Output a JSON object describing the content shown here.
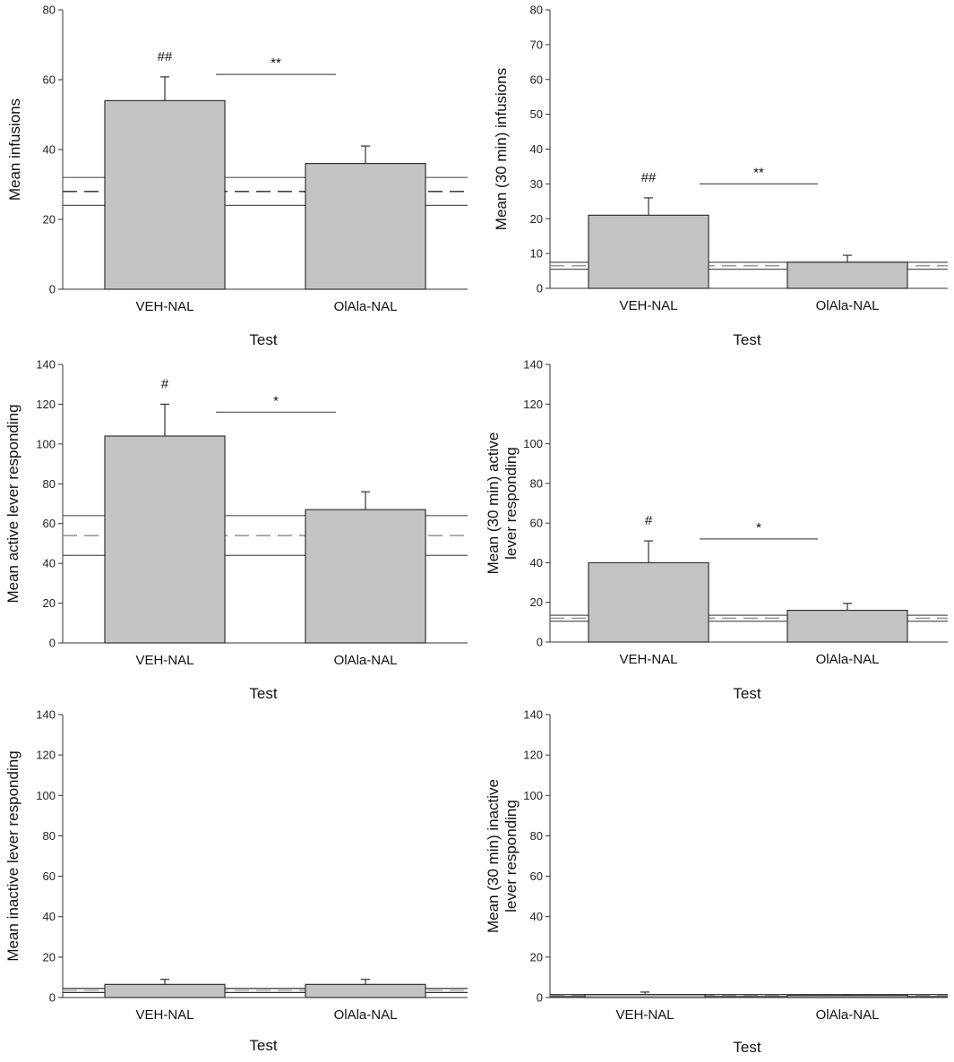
{
  "figure": {
    "panel_count": 6
  },
  "chart_data": [
    {
      "type": "bar",
      "ylabel": "Mean infusions",
      "xlabel": "Test",
      "ylim": [
        0,
        80
      ],
      "yticks": [
        0,
        20,
        40,
        60,
        80
      ],
      "categories": [
        "VEH-NAL",
        "OlAla-NAL"
      ],
      "values": [
        54,
        36
      ],
      "errors": [
        6.8,
        5
      ],
      "bar_marks": [
        "##",
        ""
      ],
      "comparison": {
        "label": "**",
        "level": 61.5
      },
      "baseline": {
        "mean": 28,
        "upper": 32,
        "lower": 24,
        "mean_color": "#444444",
        "band_color": "#555555"
      }
    },
    {
      "type": "bar",
      "ylabel": "Mean (30 min) infusions",
      "xlabel": "Test",
      "ylim": [
        0,
        80
      ],
      "yticks": [
        0,
        10,
        20,
        30,
        40,
        50,
        60,
        70,
        80
      ],
      "categories": [
        "VEH-NAL",
        "OlAla-NAL"
      ],
      "values": [
        21,
        7.5
      ],
      "errors": [
        5,
        2
      ],
      "bar_marks": [
        "##",
        ""
      ],
      "comparison": {
        "label": "**",
        "level": 30
      },
      "baseline": {
        "mean": 6.5,
        "upper": 7.5,
        "lower": 5.5,
        "mean_color": "#999999",
        "band_color": "#555555"
      }
    },
    {
      "type": "bar",
      "ylabel": "Mean active lever responding",
      "xlabel": "Test",
      "ylim": [
        0,
        140
      ],
      "yticks": [
        0,
        20,
        40,
        60,
        80,
        100,
        120,
        140
      ],
      "categories": [
        "VEH-NAL",
        "OlAla-NAL"
      ],
      "values": [
        104,
        67
      ],
      "errors": [
        16,
        9
      ],
      "bar_marks": [
        "#",
        ""
      ],
      "comparison": {
        "label": "*",
        "level": 116
      },
      "baseline": {
        "mean": 54,
        "upper": 64,
        "lower": 44,
        "mean_color": "#999999",
        "band_color": "#555555"
      }
    },
    {
      "type": "bar",
      "ylabel": "Mean (30 min) active lever responding",
      "ylabel_lines": [
        "Mean (30 min) active",
        "lever responding"
      ],
      "xlabel": "Test",
      "ylim": [
        0,
        140
      ],
      "yticks": [
        0,
        20,
        40,
        60,
        80,
        100,
        120,
        140
      ],
      "categories": [
        "VEH-NAL",
        "OlAla-NAL"
      ],
      "values": [
        40,
        16
      ],
      "errors": [
        11,
        3.5
      ],
      "bar_marks": [
        "#",
        ""
      ],
      "comparison": {
        "label": "*",
        "level": 52
      },
      "baseline": {
        "mean": 12,
        "upper": 13.5,
        "lower": 10.5,
        "mean_color": "#999999",
        "band_color": "#555555"
      }
    },
    {
      "type": "bar",
      "ylabel": "Mean inactive lever responding",
      "xlabel": "Test",
      "ylim": [
        0,
        140
      ],
      "yticks": [
        0,
        20,
        40,
        60,
        80,
        100,
        120,
        140
      ],
      "categories": [
        "VEH-NAL",
        "OlAla-NAL"
      ],
      "values": [
        6.5,
        6.5
      ],
      "errors": [
        2.5,
        2.5
      ],
      "bar_marks": [
        "",
        ""
      ],
      "comparison": null,
      "baseline": {
        "mean": 3.5,
        "upper": 4.5,
        "lower": 2.5,
        "mean_color": "#bbbbbb",
        "band_color": "#333333"
      }
    },
    {
      "type": "bar",
      "ylabel": "Mean (30 min) inactive lever responding",
      "ylabel_lines": [
        "Mean (30 min) inactive",
        "lever responding"
      ],
      "xlabel": "Test",
      "ylim": [
        0,
        140
      ],
      "yticks": [
        0,
        20,
        40,
        60,
        80,
        100,
        120,
        140
      ],
      "categories": [
        "VEH-NAL",
        "OlAla-NAL"
      ],
      "values": [
        1.5,
        1
      ],
      "errors": [
        1.2,
        0.3
      ],
      "bar_marks": [
        "",
        ""
      ],
      "comparison": null,
      "baseline": {
        "mean": 1,
        "upper": 1.5,
        "lower": 0.5,
        "mean_color": "#888888",
        "band_color": "#444444"
      }
    }
  ]
}
